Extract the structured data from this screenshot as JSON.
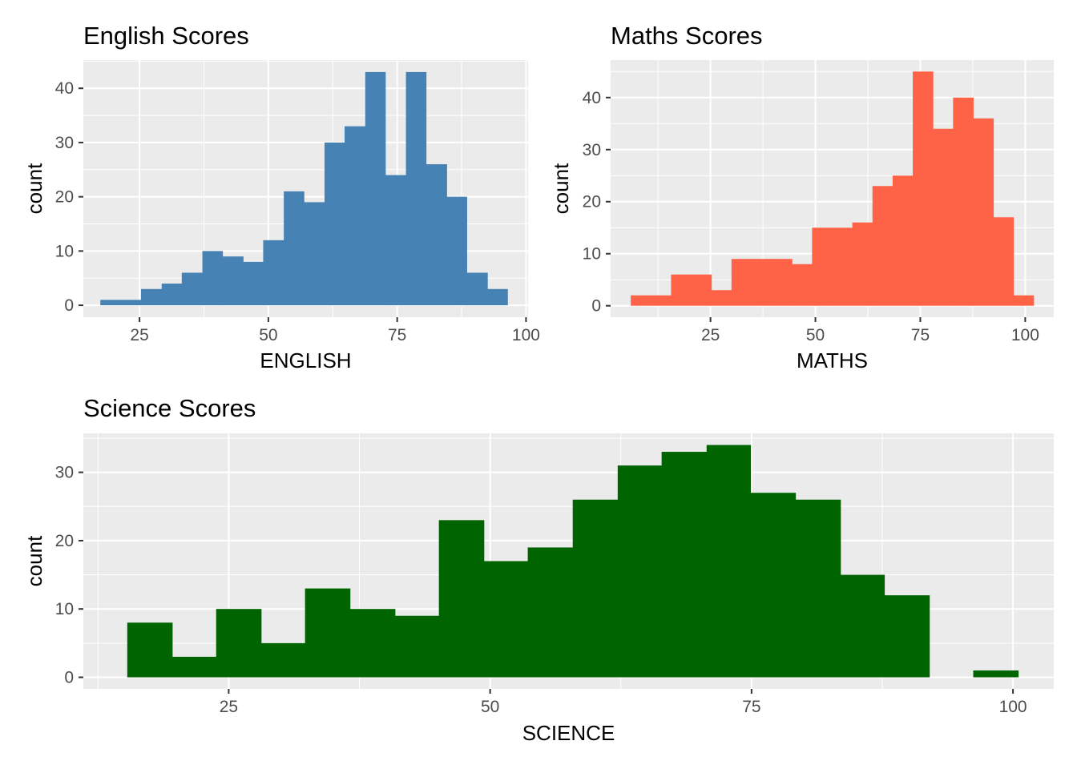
{
  "chart_data": [
    {
      "type": "bar",
      "variant": "histogram",
      "title": "English Scores",
      "xlabel": "ENGLISH",
      "ylabel": "count",
      "fill_color": "#4682b4",
      "grid": true,
      "xlim": [
        14.1,
        100.4
      ],
      "ylim": [
        -2.2,
        45.2
      ],
      "x_ticks": [
        25,
        50,
        75,
        100
      ],
      "y_ticks": [
        0,
        10,
        20,
        30,
        40
      ],
      "bins": [
        {
          "start": 17.4,
          "end": 21.4,
          "count": 1
        },
        {
          "start": 21.4,
          "end": 25.3,
          "count": 1
        },
        {
          "start": 25.3,
          "end": 29.3,
          "count": 3
        },
        {
          "start": 29.3,
          "end": 33.2,
          "count": 4
        },
        {
          "start": 33.2,
          "end": 37.2,
          "count": 6
        },
        {
          "start": 37.2,
          "end": 41.1,
          "count": 10
        },
        {
          "start": 41.1,
          "end": 45.1,
          "count": 9
        },
        {
          "start": 45.1,
          "end": 49.0,
          "count": 8
        },
        {
          "start": 49.0,
          "end": 53.0,
          "count": 12
        },
        {
          "start": 53.0,
          "end": 56.9,
          "count": 21
        },
        {
          "start": 56.9,
          "end": 60.9,
          "count": 19
        },
        {
          "start": 60.9,
          "end": 64.8,
          "count": 30
        },
        {
          "start": 64.8,
          "end": 68.8,
          "count": 33
        },
        {
          "start": 68.8,
          "end": 72.7,
          "count": 43
        },
        {
          "start": 72.7,
          "end": 76.7,
          "count": 24
        },
        {
          "start": 76.7,
          "end": 80.6,
          "count": 43
        },
        {
          "start": 80.6,
          "end": 84.6,
          "count": 26
        },
        {
          "start": 84.6,
          "end": 88.5,
          "count": 20
        },
        {
          "start": 88.5,
          "end": 92.5,
          "count": 6
        },
        {
          "start": 92.5,
          "end": 96.4,
          "count": 3
        }
      ]
    },
    {
      "type": "bar",
      "variant": "histogram",
      "title": "Maths Scores",
      "xlabel": "MATHS",
      "ylabel": "count",
      "fill_color": "#ff6347",
      "grid": true,
      "xlim": [
        1.2,
        106.8
      ],
      "ylim": [
        -2.2,
        47.2
      ],
      "x_ticks": [
        25,
        50,
        75,
        100
      ],
      "y_ticks": [
        0,
        10,
        20,
        30,
        40
      ],
      "bins": [
        {
          "start": 6.0,
          "end": 10.8,
          "count": 2
        },
        {
          "start": 10.8,
          "end": 15.6,
          "count": 2
        },
        {
          "start": 15.6,
          "end": 20.4,
          "count": 6
        },
        {
          "start": 20.4,
          "end": 25.2,
          "count": 6
        },
        {
          "start": 25.2,
          "end": 30.0,
          "count": 3
        },
        {
          "start": 30.0,
          "end": 34.8,
          "count": 9
        },
        {
          "start": 34.8,
          "end": 39.6,
          "count": 9
        },
        {
          "start": 39.6,
          "end": 44.4,
          "count": 9
        },
        {
          "start": 44.4,
          "end": 49.2,
          "count": 8
        },
        {
          "start": 49.2,
          "end": 54.0,
          "count": 15
        },
        {
          "start": 54.0,
          "end": 58.8,
          "count": 15
        },
        {
          "start": 58.8,
          "end": 63.6,
          "count": 16
        },
        {
          "start": 63.6,
          "end": 68.4,
          "count": 23
        },
        {
          "start": 68.4,
          "end": 73.2,
          "count": 25
        },
        {
          "start": 73.2,
          "end": 78.0,
          "count": 45
        },
        {
          "start": 78.0,
          "end": 82.8,
          "count": 34
        },
        {
          "start": 82.8,
          "end": 87.6,
          "count": 40
        },
        {
          "start": 87.6,
          "end": 92.4,
          "count": 36
        },
        {
          "start": 92.4,
          "end": 97.2,
          "count": 17
        },
        {
          "start": 97.2,
          "end": 102.0,
          "count": 2
        }
      ]
    },
    {
      "type": "bar",
      "variant": "histogram",
      "title": "Science Scores",
      "xlabel": "SCIENCE",
      "ylabel": "count",
      "fill_color": "#006400",
      "grid": true,
      "xlim": [
        11.1,
        103.9
      ],
      "ylim": [
        -1.7,
        35.7
      ],
      "x_ticks": [
        25,
        50,
        75,
        100
      ],
      "y_ticks": [
        0,
        10,
        20,
        30
      ],
      "bins": [
        {
          "start": 15.3,
          "end": 19.6,
          "count": 8
        },
        {
          "start": 19.6,
          "end": 23.8,
          "count": 3
        },
        {
          "start": 23.8,
          "end": 28.1,
          "count": 10
        },
        {
          "start": 28.1,
          "end": 32.3,
          "count": 5
        },
        {
          "start": 32.3,
          "end": 36.6,
          "count": 13
        },
        {
          "start": 36.6,
          "end": 40.9,
          "count": 10
        },
        {
          "start": 40.9,
          "end": 45.1,
          "count": 9
        },
        {
          "start": 45.1,
          "end": 49.4,
          "count": 23
        },
        {
          "start": 49.4,
          "end": 53.6,
          "count": 17
        },
        {
          "start": 53.6,
          "end": 57.9,
          "count": 19
        },
        {
          "start": 57.9,
          "end": 62.2,
          "count": 26
        },
        {
          "start": 62.2,
          "end": 66.4,
          "count": 31
        },
        {
          "start": 66.4,
          "end": 70.7,
          "count": 33
        },
        {
          "start": 70.7,
          "end": 74.9,
          "count": 34
        },
        {
          "start": 74.9,
          "end": 79.2,
          "count": 27
        },
        {
          "start": 79.2,
          "end": 83.5,
          "count": 26
        },
        {
          "start": 83.5,
          "end": 87.7,
          "count": 15
        },
        {
          "start": 87.7,
          "end": 92.0,
          "count": 12
        },
        {
          "start": 92.0,
          "end": 96.2,
          "count": 0
        },
        {
          "start": 96.2,
          "end": 100.5,
          "count": 1
        }
      ]
    }
  ]
}
